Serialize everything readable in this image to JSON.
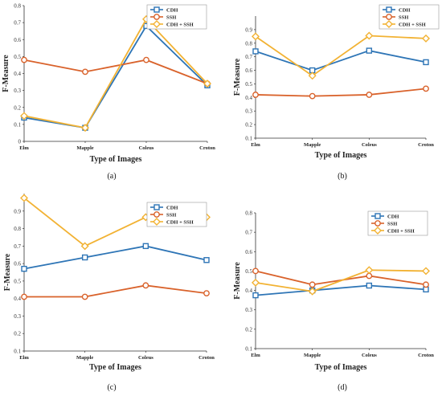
{
  "chart_data": [
    {
      "type": "line",
      "panel_label": "(a)",
      "categories": [
        "Elm",
        "Mapple",
        "Coleus",
        "Croton"
      ],
      "xlabel": "Type of Images",
      "ylabel": "F-Measure",
      "ylim": [
        0,
        0.8
      ],
      "yticks": [
        "0",
        "0.1",
        "0.2",
        "0.3",
        "0.4",
        "0.5",
        "0.6",
        "0.7",
        "0.8"
      ],
      "legend_position": "top-right",
      "series": [
        {
          "name": "CDH",
          "values": [
            0.14,
            0.08,
            0.68,
            0.33
          ],
          "color": "#2E75B6",
          "marker": "square"
        },
        {
          "name": "SSH",
          "values": [
            0.48,
            0.41,
            0.48,
            0.34
          ],
          "color": "#D9622B",
          "marker": "circle"
        },
        {
          "name": "CDH + SSH",
          "values": [
            0.15,
            0.08,
            0.72,
            0.34
          ],
          "color": "#F2B233",
          "marker": "diamond"
        }
      ]
    },
    {
      "type": "line",
      "panel_label": "(b)",
      "categories": [
        "Elm",
        "Mapple",
        "Coleus",
        "Croton"
      ],
      "xlabel": "Type of Images",
      "ylabel": "F-Measure",
      "ylim": [
        0.1,
        1.0
      ],
      "yticks": [
        "0.1",
        "0.2",
        "0.3",
        "0.4",
        "0.5",
        "0.6",
        "0.7",
        "0.8",
        "0.9"
      ],
      "legend_position": "top-right",
      "series": [
        {
          "name": "CDH",
          "values": [
            0.74,
            0.6,
            0.745,
            0.66
          ],
          "color": "#2E75B6",
          "marker": "square"
        },
        {
          "name": "SSH",
          "values": [
            0.42,
            0.41,
            0.42,
            0.465
          ],
          "color": "#D9622B",
          "marker": "circle"
        },
        {
          "name": "CDH + SSH",
          "values": [
            0.85,
            0.56,
            0.855,
            0.835
          ],
          "color": "#F2B233",
          "marker": "diamond"
        }
      ]
    },
    {
      "type": "line",
      "panel_label": "(c)",
      "categories": [
        "Elm",
        "Mapple",
        "Coleus",
        "Croton"
      ],
      "xlabel": "Type of Images",
      "ylabel": "F-Measure",
      "ylim": [
        0.1,
        1.0
      ],
      "yticks": [
        "0.1",
        "0.2",
        "0.3",
        "0.4",
        "0.5",
        "0.6",
        "0.7",
        "0.8",
        "0.9"
      ],
      "legend_position": "top-right",
      "series": [
        {
          "name": "CDH",
          "values": [
            0.57,
            0.635,
            0.7,
            0.62
          ],
          "color": "#2E75B6",
          "marker": "square"
        },
        {
          "name": "SSH",
          "values": [
            0.41,
            0.41,
            0.475,
            0.43
          ],
          "color": "#D9622B",
          "marker": "circle"
        },
        {
          "name": "CDH + SSH",
          "values": [
            0.975,
            0.7,
            0.865,
            0.865
          ],
          "color": "#F2B233",
          "marker": "diamond"
        }
      ]
    },
    {
      "type": "line",
      "panel_label": "(d)",
      "categories": [
        "Elm",
        "Mapple",
        "Coleus",
        "Croton"
      ],
      "xlabel": "Type of Images",
      "ylabel": "F-Measure",
      "ylim": [
        0.1,
        0.8
      ],
      "yticks": [
        "0.1",
        "0.2",
        "0.3",
        "0.4",
        "0.5",
        "0.6",
        "0.7",
        "0.8"
      ],
      "legend_position": "top-right",
      "series": [
        {
          "name": "CDH",
          "values": [
            0.375,
            0.4,
            0.425,
            0.405
          ],
          "color": "#2E75B6",
          "marker": "square"
        },
        {
          "name": "SSH",
          "values": [
            0.5,
            0.43,
            0.475,
            0.43
          ],
          "color": "#D9622B",
          "marker": "circle"
        },
        {
          "name": "CDH + SSH",
          "values": [
            0.44,
            0.395,
            0.505,
            0.5
          ],
          "color": "#F2B233",
          "marker": "diamond"
        }
      ]
    }
  ]
}
